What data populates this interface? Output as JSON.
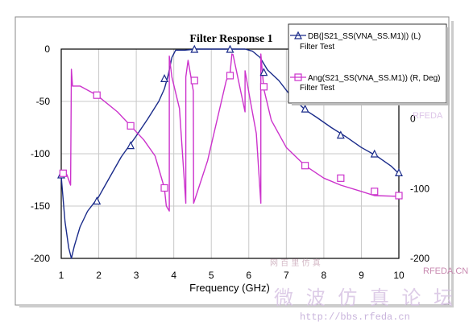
{
  "chart_data": {
    "type": "line",
    "title": "Filter Response 1",
    "xlabel": "Frequency (GHz)",
    "ylabel": "",
    "xlim": [
      1,
      10
    ],
    "ylim_left": [
      -200,
      0
    ],
    "ylim_right": [
      -200,
      100
    ],
    "xticks": [
      "1",
      "2",
      "3",
      "4",
      "5",
      "6",
      "7",
      "8",
      "9",
      "10"
    ],
    "yticks_left": [
      "0",
      "-50",
      "-100",
      "-150",
      "-200"
    ],
    "yticks_right": [
      "100",
      "0",
      "-100",
      "-200"
    ],
    "grid": true,
    "legend_placement": "top-right",
    "series": [
      {
        "name": "DB(|S21_SS(VNA_SS.M1)|) (L)",
        "subtitle": "Filter Test",
        "axis": "left",
        "color": "#1a2b8a",
        "marker": "triangle",
        "x": [
          1.0,
          1.1,
          1.2,
          1.27,
          1.35,
          1.5,
          1.7,
          2.0,
          2.3,
          2.6,
          2.8,
          3.0,
          3.3,
          3.6,
          3.75,
          3.85,
          3.95,
          4.05,
          4.3,
          4.6,
          5.0,
          5.4,
          5.9,
          6.1,
          6.3,
          6.5,
          6.8,
          7.1,
          7.5,
          7.8,
          8.2,
          8.6,
          9.0,
          9.4,
          9.8,
          10.0
        ],
        "values": [
          -122,
          -165,
          -190,
          -200,
          -188,
          -170,
          -155,
          -141,
          -122,
          -103,
          -93,
          -83,
          -67,
          -50,
          -38,
          -25,
          -8,
          -1,
          -1,
          0,
          0,
          0,
          0,
          -2,
          -8,
          -20,
          -30,
          -44,
          -58,
          -65,
          -75,
          -84,
          -94,
          -102,
          -112,
          -119
        ],
        "markers_x": [
          1.0,
          1.95,
          2.85,
          3.75,
          4.55,
          5.5,
          6.4,
          7.5,
          8.45,
          9.35,
          10.0
        ],
        "markers_y": [
          -120,
          -145,
          -92,
          -28,
          0,
          0,
          -22,
          -57,
          -82,
          -100,
          -118
        ]
      },
      {
        "name": "Ang(S21_SS(VNA_SS.M1)) (R, Deg)",
        "subtitle": "Filter Test",
        "axis": "right",
        "color": "#cc33cc",
        "marker": "square",
        "x": [
          1.0,
          1.15,
          1.25,
          1.27,
          1.3,
          1.5,
          1.95,
          2.5,
          2.85,
          3.2,
          3.5,
          3.75,
          3.8,
          3.88,
          3.88,
          3.95,
          4.15,
          4.32,
          4.32,
          4.38,
          4.52,
          4.53,
          4.9,
          5.4,
          5.5,
          5.55,
          5.58,
          5.9,
          5.9,
          6.05,
          6.2,
          6.32,
          6.32,
          6.4,
          6.6,
          7.0,
          7.5,
          8.0,
          8.45,
          9.0,
          9.35,
          10.0
        ],
        "values": [
          -77,
          -80,
          -95,
          71,
          47,
          47,
          34,
          10,
          -10,
          -30,
          -53,
          -99,
          -125,
          -132,
          90,
          60,
          15,
          -121,
          60,
          84,
          40,
          -121,
          -60,
          55,
          65,
          93,
          92,
          10,
          69,
          23,
          -21,
          -121,
          93,
          43,
          -2,
          -41,
          -67,
          -85,
          -95,
          -104,
          -110,
          -111
        ],
        "markers_x": [
          1.05,
          1.95,
          2.85,
          3.75,
          4.55,
          5.5,
          6.4,
          7.5,
          8.45,
          9.35,
          10.0
        ],
        "markers_y": [
          -78,
          34,
          -10,
          -99,
          55,
          62,
          46,
          -67,
          -85,
          -104,
          -110
        ]
      }
    ]
  },
  "watermark": {
    "top_faint": "网 百 里 仿 真",
    "rfeda": "RFEDA.CN",
    "chinese": "微 波 仿 真 论 坛",
    "url": "http://bbs.rfeda.cn",
    "side_rfeda": "RFEDA"
  }
}
